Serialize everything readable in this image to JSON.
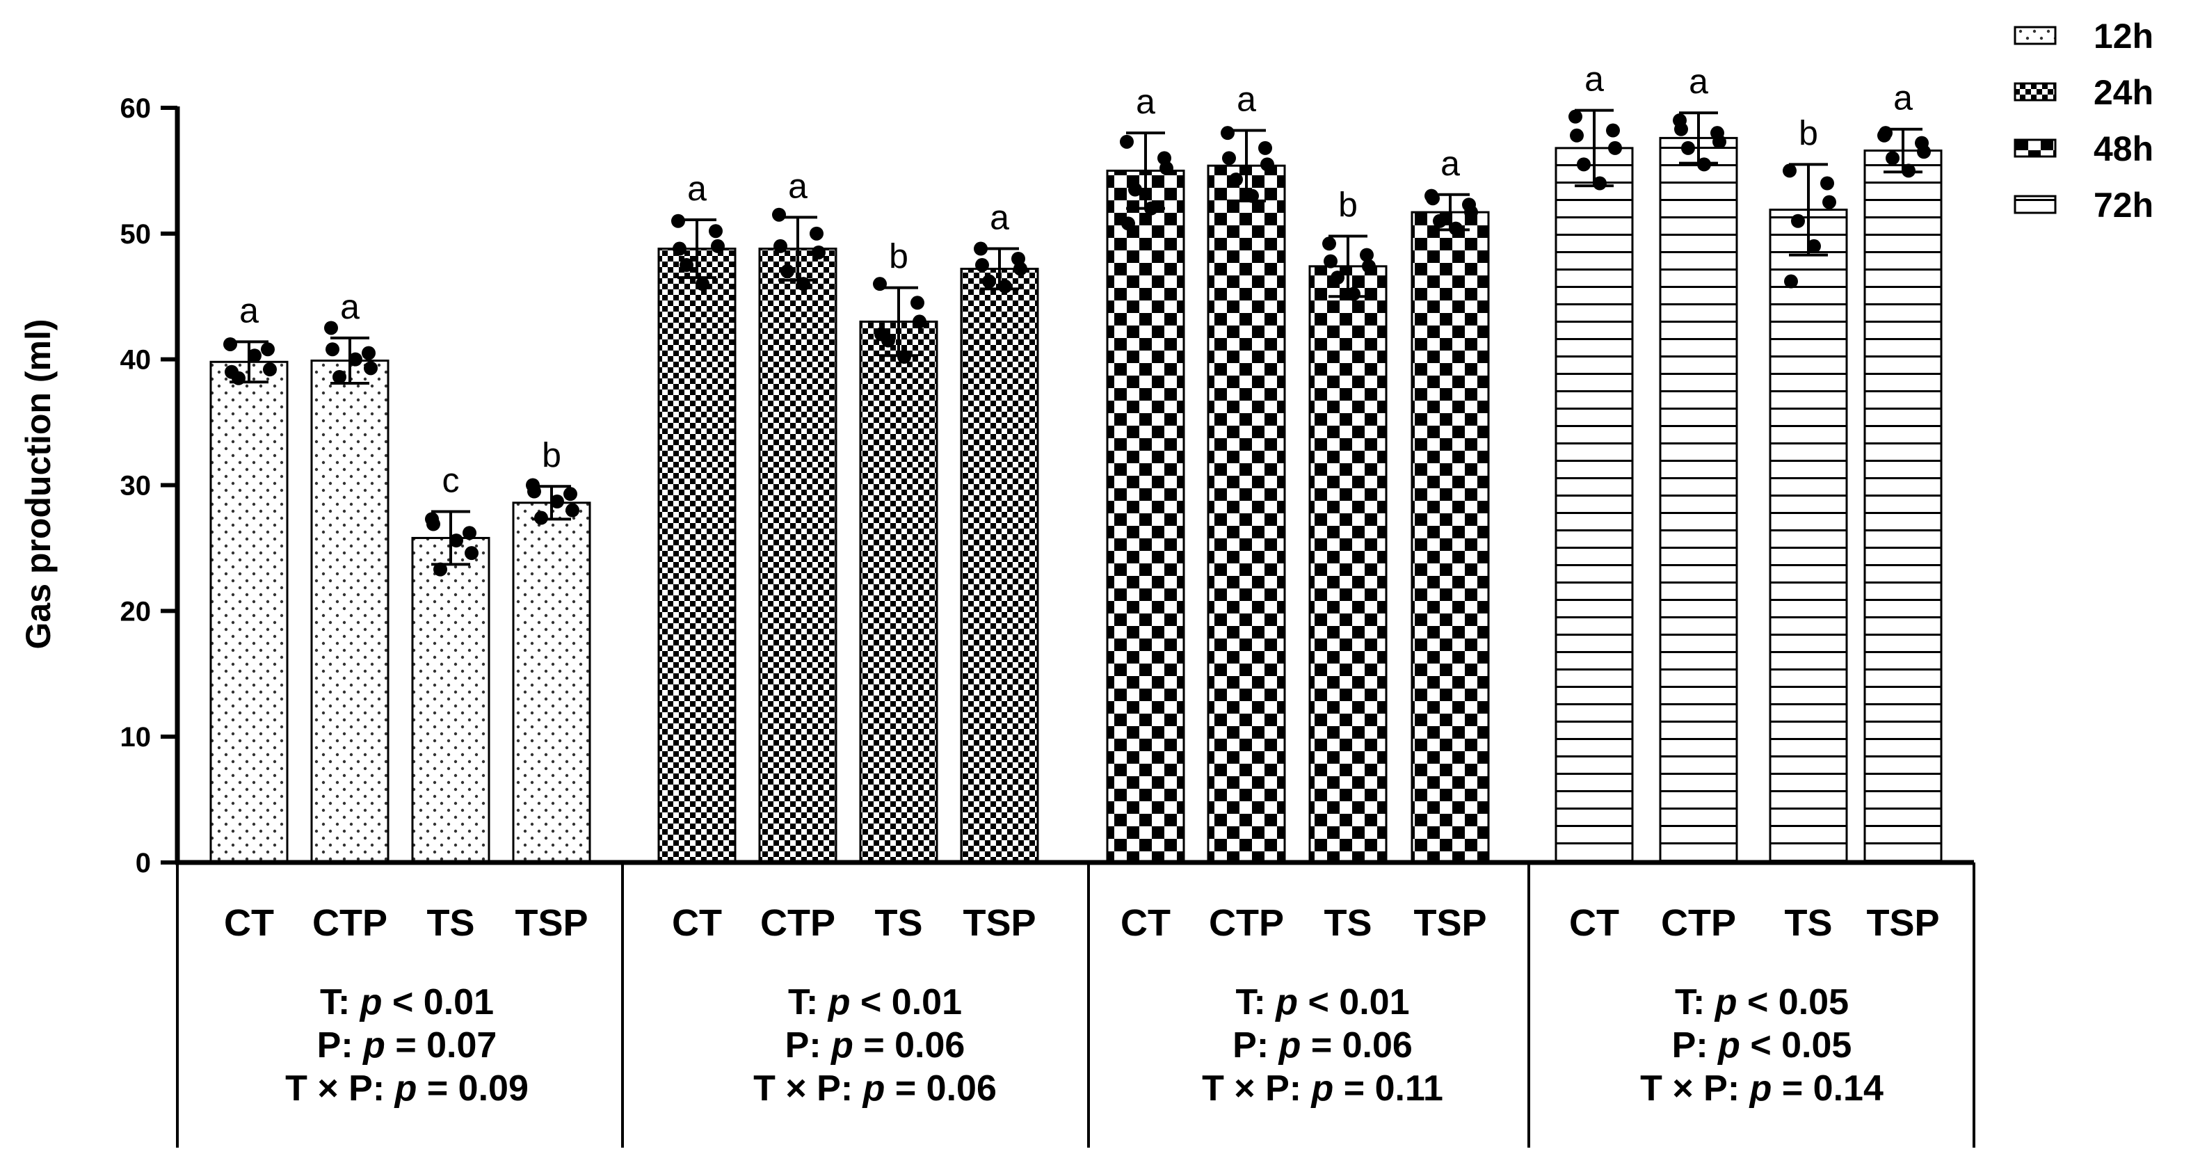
{
  "chart_data": {
    "type": "bar",
    "title": "",
    "xlabel": "",
    "ylabel": "Gas production (ml)",
    "ylim": [
      0,
      60
    ],
    "yticks": [
      0,
      10,
      20,
      30,
      40,
      50,
      60
    ],
    "legend_position": "top-right",
    "pattern_names": [
      "dots-pattern",
      "fine-checker-pattern",
      "coarse-checker-pattern",
      "horizontal-lines-pattern"
    ],
    "groups": [
      {
        "name": "12h",
        "categories": [
          "CT",
          "CTP",
          "TS",
          "TSP"
        ],
        "values": [
          39.8,
          39.9,
          25.8,
          28.6
        ],
        "errors": [
          1.6,
          1.8,
          2.1,
          1.3
        ],
        "letters": [
          "a",
          "a",
          "c",
          "b"
        ],
        "points": [
          [
            41.2,
            40.8,
            39.2,
            38.5,
            40.3,
            39.0
          ],
          [
            42.5,
            40.5,
            39.3,
            38.6,
            40.0,
            40.8
          ],
          [
            27.3,
            26.2,
            24.6,
            23.3,
            25.6,
            26.9
          ],
          [
            30.0,
            29.3,
            28.0,
            27.4,
            28.7,
            29.5
          ]
        ],
        "stats": [
          "T: p < 0.01",
          "P: p = 0.07",
          "T × P: p = 0.09"
        ]
      },
      {
        "name": "24h",
        "categories": [
          "CT",
          "CTP",
          "TS",
          "TSP"
        ],
        "values": [
          48.8,
          48.8,
          43.0,
          47.2
        ],
        "errors": [
          2.3,
          2.5,
          2.7,
          1.6
        ],
        "letters": [
          "a",
          "a",
          "b",
          "a"
        ],
        "points": [
          [
            51.0,
            50.2,
            49.0,
            47.5,
            46.0,
            48.8
          ],
          [
            51.5,
            50.0,
            48.5,
            47.0,
            46.0,
            49.0
          ],
          [
            46.0,
            44.5,
            43.0,
            41.5,
            40.2,
            42.0
          ],
          [
            48.8,
            48.0,
            47.2,
            46.2,
            45.8,
            47.5
          ]
        ],
        "stats": [
          "T: p < 0.01",
          "P: p = 0.06",
          "T × P: p = 0.06"
        ]
      },
      {
        "name": "48h",
        "categories": [
          "CT",
          "CTP",
          "TS",
          "TSP"
        ],
        "values": [
          55.0,
          55.4,
          47.4,
          51.7
        ],
        "errors": [
          3.0,
          2.8,
          2.4,
          1.4
        ],
        "letters": [
          "a",
          "a",
          "b",
          "a"
        ],
        "points": [
          [
            57.3,
            56.0,
            55.2,
            53.5,
            52.0,
            50.8
          ],
          [
            58.0,
            56.8,
            55.5,
            54.3,
            53.0,
            56.0
          ],
          [
            49.2,
            48.3,
            47.4,
            46.5,
            45.2,
            47.8
          ],
          [
            53.0,
            52.3,
            51.7,
            51.0,
            50.4,
            52.8
          ]
        ],
        "stats": [
          "T: p < 0.01",
          "P: p = 0.06",
          "T × P: p = 0.11"
        ]
      },
      {
        "name": "72h",
        "categories": [
          "CT",
          "CTP",
          "TS",
          "TSP"
        ],
        "values": [
          56.8,
          57.6,
          51.9,
          56.6
        ],
        "errors": [
          3.0,
          2.0,
          3.6,
          1.7
        ],
        "letters": [
          "a",
          "a",
          "b",
          "a"
        ],
        "points": [
          [
            59.3,
            58.2,
            56.8,
            55.5,
            54.0,
            57.8
          ],
          [
            59.0,
            58.0,
            57.3,
            56.8,
            55.5,
            58.3
          ],
          [
            55.0,
            54.0,
            52.5,
            51.0,
            49.0,
            46.2
          ],
          [
            57.8,
            57.2,
            56.5,
            56.0,
            55.0,
            58.0
          ]
        ],
        "stats": [
          "T: p < 0.05",
          "P: p < 0.05",
          "T × P: p = 0.14"
        ]
      }
    ]
  }
}
